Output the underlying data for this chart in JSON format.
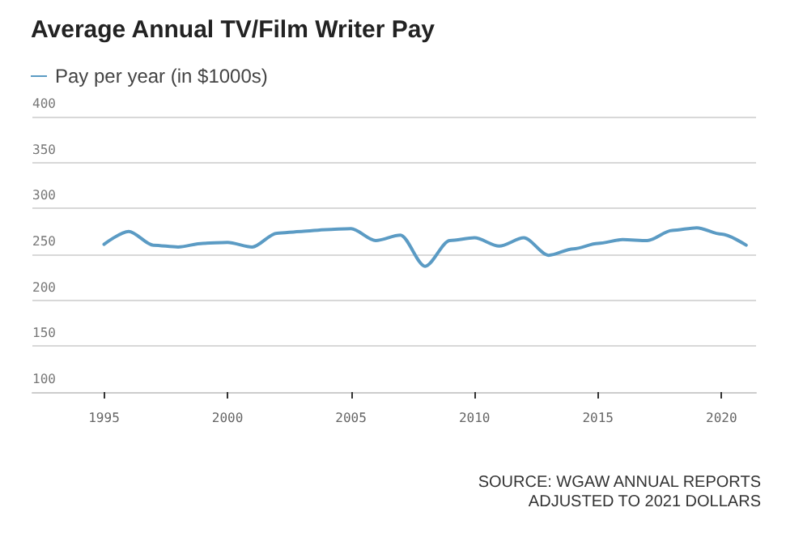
{
  "chart_data": {
    "type": "line",
    "title": "Average Annual TV/Film Writer Pay",
    "x": [
      1995,
      1996,
      1997,
      1998,
      1999,
      2000,
      2001,
      2002,
      2003,
      2004,
      2005,
      2006,
      2007,
      2008,
      2009,
      2010,
      2011,
      2012,
      2013,
      2014,
      2015,
      2016,
      2017,
      2018,
      2019,
      2020,
      2021
    ],
    "series": [
      {
        "name": "Pay per year (in $1000s)",
        "color": "#5b9bc4",
        "values": [
          261,
          275,
          260,
          258,
          262,
          263,
          258,
          273,
          275,
          277,
          278,
          265,
          271,
          237,
          265,
          268,
          259,
          268,
          249,
          256,
          262,
          266,
          265,
          276,
          279,
          272,
          260
        ]
      }
    ],
    "xlim": [
      1992.1,
      2021.4
    ],
    "xticks": [
      1995,
      2000,
      2005,
      2010,
      2015,
      2020
    ],
    "ylim": [
      100,
      400
    ],
    "yticks": [
      100,
      150,
      200,
      250,
      300,
      350,
      400
    ],
    "grid": "y",
    "legend": "top left",
    "marker": "none",
    "line_style": "solid",
    "annotations": [
      "SOURCE: WGAW ANNUAL REPORTS\nADJUSTED TO 2021 DOLLARS"
    ]
  }
}
